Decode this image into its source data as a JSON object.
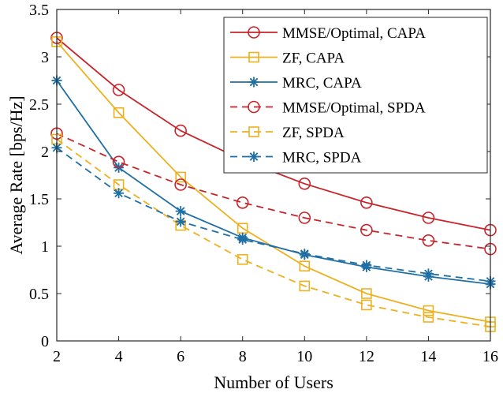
{
  "chart_data": {
    "type": "line",
    "title": "",
    "xlabel": "Number of Users",
    "ylabel": "Average Rate [bps/Hz]",
    "xlim": [
      2,
      16
    ],
    "ylim": [
      0,
      3.5
    ],
    "xticks": [
      2,
      4,
      6,
      8,
      10,
      12,
      14,
      16
    ],
    "yticks": [
      0,
      0.5,
      1,
      1.5,
      2,
      2.5,
      3,
      3.5
    ],
    "xtick_labels": [
      "2",
      "4",
      "6",
      "8",
      "10",
      "12",
      "14",
      "16"
    ],
    "ytick_labels": [
      "0",
      "0.5",
      "1",
      "1.5",
      "2",
      "2.5",
      "3",
      "3.5"
    ],
    "grid": false,
    "legend_position": "top-right",
    "x": [
      2,
      4,
      6,
      8,
      10,
      12,
      14,
      16
    ],
    "series": [
      {
        "name": "MMSE/Optimal, CAPA",
        "color": "#C8242B",
        "marker": "circle",
        "line": "solid",
        "values": [
          3.2,
          2.65,
          2.22,
          1.91,
          1.66,
          1.46,
          1.3,
          1.17
        ]
      },
      {
        "name": "ZF, CAPA",
        "color": "#EDB120",
        "marker": "square",
        "line": "solid",
        "values": [
          3.16,
          2.41,
          1.73,
          1.19,
          0.79,
          0.5,
          0.32,
          0.2
        ]
      },
      {
        "name": "MRC, CAPA",
        "color": "#1F6FA5",
        "marker": "asterisk",
        "line": "solid",
        "values": [
          2.75,
          1.83,
          1.37,
          1.09,
          0.91,
          0.78,
          0.68,
          0.6
        ]
      },
      {
        "name": "MMSE/Optimal, SPDA",
        "color": "#C8242B",
        "marker": "circle",
        "line": "dashed",
        "values": [
          2.19,
          1.89,
          1.65,
          1.46,
          1.3,
          1.17,
          1.06,
          0.97
        ]
      },
      {
        "name": "ZF, SPDA",
        "color": "#EDB120",
        "marker": "square",
        "line": "dashed",
        "values": [
          2.13,
          1.65,
          1.22,
          0.86,
          0.58,
          0.38,
          0.25,
          0.15
        ]
      },
      {
        "name": "MRC, SPDA",
        "color": "#1F6FA5",
        "marker": "asterisk",
        "line": "dashed",
        "values": [
          2.04,
          1.56,
          1.26,
          1.07,
          0.92,
          0.8,
          0.71,
          0.63
        ]
      }
    ]
  }
}
